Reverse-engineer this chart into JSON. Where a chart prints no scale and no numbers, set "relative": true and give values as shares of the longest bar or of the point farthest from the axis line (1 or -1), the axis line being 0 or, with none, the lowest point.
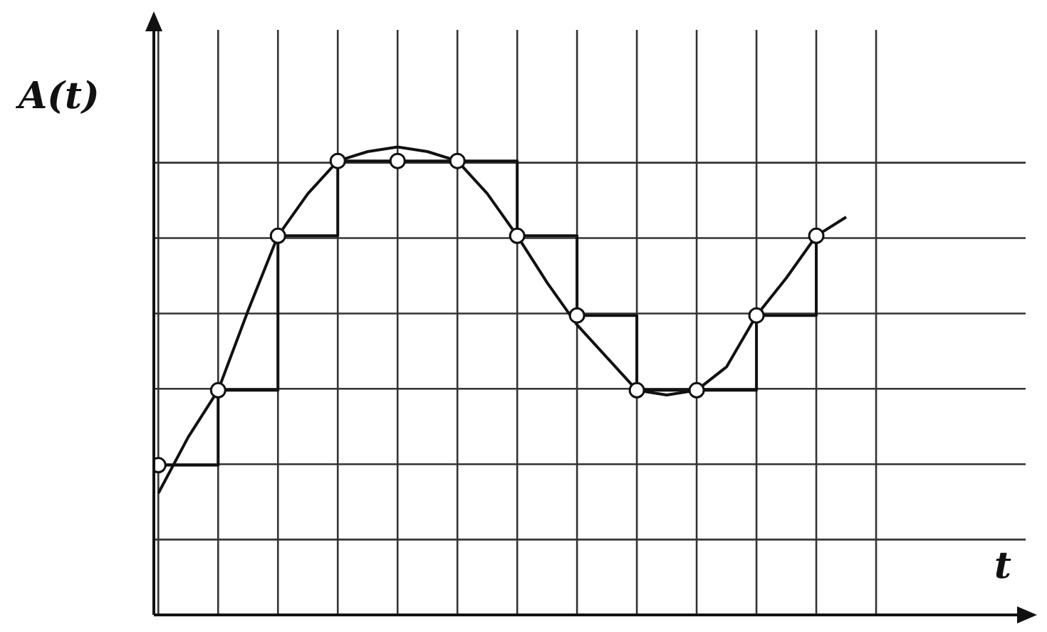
{
  "chart_data": {
    "type": "line",
    "xlabel": "t",
    "ylabel": "A(t)",
    "relative": true,
    "grid": true,
    "categories": [
      null,
      null,
      null,
      null,
      null,
      null,
      null,
      null,
      null,
      null,
      null,
      null,
      null,
      null,
      null,
      null,
      null,
      null,
      null,
      null,
      null,
      null,
      null,
      null,
      null
    ],
    "series": [
      {
        "type": "line",
        "color": "#111111",
        "marker": "none",
        "line_style": "solid",
        "values": [
          0.26,
          0.38,
          0.48,
          0.65,
          0.81,
          0.9,
          0.97,
          0.99,
          1,
          0.99,
          0.97,
          0.9,
          0.81,
          0.71,
          0.62,
          0.55,
          0.48,
          0.47,
          0.48,
          0.53,
          0.64,
          0.72,
          0.81,
          0.85,
          null
        ]
      },
      {
        "type": "step",
        "color": "#111111",
        "marker": "circle",
        "line_style": "solid",
        "values": [
          0.32,
          null,
          0.48,
          null,
          0.81,
          null,
          0.97,
          null,
          0.97,
          null,
          0.97,
          null,
          0.81,
          null,
          0.64,
          null,
          0.48,
          null,
          0.48,
          null,
          0.64,
          null,
          0.81,
          null,
          null
        ]
      }
    ]
  }
}
